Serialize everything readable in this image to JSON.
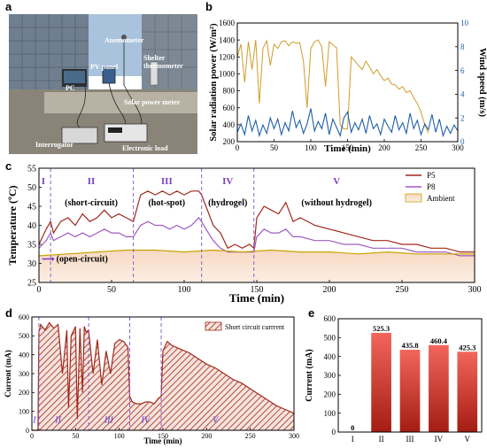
{
  "panel_labels": {
    "a": "a",
    "b": "b",
    "c": "c",
    "d": "d",
    "e": "e"
  },
  "photo": {
    "labels": {
      "anemometer": "Anemometer",
      "shelter": "Shelter\nthermometer",
      "pv": "PV panel",
      "pc": "PC",
      "meter": "Solar power meter",
      "interrogator": "Interrogator",
      "load": "Electronic load"
    },
    "colors": {
      "sky": "#a9c3dd",
      "building": "#6f7f8f",
      "ground": "#8a8478",
      "bench": "#b8b2a4"
    }
  },
  "chart_data": [
    {
      "id": "b",
      "type": "line",
      "xlabel": "Time (min)",
      "ylabel": "Solar radiation power (W/m²)",
      "ylabel2": "Wind speed (m/s)",
      "xlim": [
        0,
        300
      ],
      "ylim": [
        200,
        1600
      ],
      "ylim2": [
        0,
        10
      ],
      "xticks": [
        "0",
        "50",
        "100",
        "150",
        "200",
        "250",
        "300"
      ],
      "yticks": [
        "200",
        "400",
        "600",
        "800",
        "1000",
        "1200",
        "1400",
        "1600"
      ],
      "yticks2": [
        "0",
        "2",
        "4",
        "6",
        "8",
        "10"
      ],
      "series": [
        {
          "color": "#d29b2a",
          "axis": "left",
          "x": [
            0,
            5,
            10,
            15,
            20,
            25,
            30,
            35,
            40,
            45,
            50,
            55,
            60,
            65,
            70,
            75,
            80,
            85,
            90,
            95,
            100,
            105,
            110,
            115,
            120,
            125,
            130,
            135,
            140,
            145,
            150,
            155,
            160,
            165,
            170,
            175,
            180,
            185,
            190,
            195,
            200,
            205,
            210,
            215,
            220,
            225,
            230,
            235,
            240,
            245,
            250,
            255,
            260
          ],
          "y": [
            1200,
            1350,
            900,
            1380,
            1050,
            1400,
            650,
            1300,
            1390,
            1100,
            1350,
            1300,
            1380,
            1390,
            1330,
            1380,
            1360,
            1370,
            1150,
            600,
            1300,
            1380,
            1400,
            1320,
            850,
            1380,
            1340,
            1310,
            400,
            350,
            350,
            1200,
            1150,
            1100,
            1050,
            1150,
            1080,
            1000,
            1050,
            980,
            920,
            950,
            880,
            870,
            820,
            850,
            780,
            800,
            720,
            650,
            550,
            400,
            300
          ]
        },
        {
          "color": "#1f5fa8",
          "axis": "right",
          "x": [
            0,
            5,
            10,
            15,
            20,
            25,
            30,
            35,
            40,
            45,
            50,
            55,
            60,
            65,
            70,
            75,
            80,
            85,
            90,
            95,
            100,
            105,
            110,
            115,
            120,
            125,
            130,
            135,
            140,
            145,
            150,
            155,
            160,
            165,
            170,
            175,
            180,
            185,
            190,
            195,
            200,
            205,
            210,
            215,
            220,
            225,
            230,
            235,
            240,
            245,
            250,
            255,
            260,
            265,
            270,
            275,
            280,
            285,
            290,
            295,
            300
          ],
          "y": [
            0.8,
            1.5,
            0.6,
            2.2,
            0.9,
            1.8,
            0.5,
            1.4,
            0.7,
            2.0,
            1.1,
            1.9,
            0.6,
            1.6,
            0.9,
            2.6,
            1.2,
            1.8,
            0.7,
            1.5,
            2.8,
            0.9,
            1.7,
            1.1,
            2.4,
            0.6,
            1.9,
            1.2,
            0.5,
            2.0,
            2.5,
            0.8,
            1.6,
            1.0,
            1.9,
            0.7,
            2.2,
            1.1,
            1.5,
            0.6,
            1.9,
            1.3,
            0.8,
            2.2,
            1.0,
            1.6,
            0.7,
            2.4,
            1.1,
            1.8,
            0.6,
            1.5,
            1.0,
            2.3,
            0.8,
            1.9,
            0.5,
            1.3,
            0.7,
            1.4,
            0.9
          ]
        }
      ]
    },
    {
      "id": "c",
      "type": "line",
      "xlabel": "Time (min)",
      "ylabel": "Temperature (ºC)",
      "xlim": [
        0,
        300
      ],
      "ylim": [
        25,
        55
      ],
      "xticks": [
        "0",
        "50",
        "100",
        "150",
        "200",
        "250",
        "300"
      ],
      "yticks": [
        "25",
        "30",
        "35",
        "40",
        "45",
        "50",
        "55"
      ],
      "phase_dividers": [
        8,
        65,
        112,
        148
      ],
      "phases": [
        {
          "roman": "I",
          "desc": ""
        },
        {
          "roman": "II",
          "desc": "(short-circuit)"
        },
        {
          "roman": "III",
          "desc": "(hot-spot)"
        },
        {
          "roman": "IV",
          "desc": "(hydrogel)"
        },
        {
          "roman": "V",
          "desc": "(without hydrogel)"
        }
      ],
      "annotation": "(open-circuit)",
      "legend": [
        "P5",
        "P8",
        "Ambient"
      ],
      "series": [
        {
          "name": "P5",
          "color": "#a0291b",
          "x": [
            0,
            5,
            8,
            10,
            15,
            20,
            25,
            30,
            35,
            40,
            45,
            50,
            55,
            60,
            65,
            70,
            75,
            80,
            85,
            90,
            95,
            100,
            105,
            110,
            112,
            115,
            120,
            125,
            130,
            135,
            140,
            145,
            148,
            150,
            155,
            160,
            165,
            170,
            175,
            180,
            190,
            200,
            210,
            220,
            230,
            240,
            250,
            260,
            270,
            280,
            290,
            300
          ],
          "y": [
            35,
            39,
            41,
            38,
            41,
            42,
            40,
            43,
            41,
            42,
            44,
            42,
            43,
            42,
            41,
            48,
            49,
            48,
            49,
            48,
            49,
            48,
            49,
            49,
            48,
            45,
            40,
            38,
            34,
            35,
            34,
            35,
            34,
            42,
            45,
            44,
            43,
            46,
            41,
            42,
            40,
            39,
            38,
            37,
            36,
            36,
            35,
            35,
            34,
            34,
            33,
            33
          ]
        },
        {
          "name": "P8",
          "color": "#a05cc0",
          "x": [
            0,
            5,
            8,
            10,
            15,
            20,
            25,
            30,
            35,
            40,
            45,
            50,
            55,
            60,
            65,
            70,
            75,
            80,
            85,
            90,
            95,
            100,
            105,
            110,
            112,
            115,
            120,
            125,
            130,
            135,
            140,
            145,
            148,
            150,
            155,
            160,
            165,
            170,
            175,
            180,
            190,
            200,
            210,
            220,
            230,
            240,
            250,
            260,
            270,
            280,
            290,
            300
          ],
          "y": [
            34,
            36,
            38,
            36,
            37,
            38,
            37,
            38,
            37,
            38,
            39,
            38,
            38,
            37,
            37,
            40,
            41,
            40,
            40,
            39,
            40,
            39,
            40,
            42,
            41,
            39,
            36,
            34,
            33,
            33,
            33,
            33,
            33,
            37,
            39,
            38,
            38,
            39,
            37,
            37,
            36,
            36,
            35,
            35,
            34,
            34,
            34,
            33,
            33,
            33,
            32,
            32
          ]
        },
        {
          "name": "Ambient",
          "color": "#c9a300",
          "x": [
            0,
            20,
            40,
            60,
            80,
            100,
            120,
            140,
            160,
            180,
            200,
            220,
            240,
            260,
            280,
            300
          ],
          "y": [
            32,
            32.5,
            33,
            33.5,
            33.5,
            33,
            33.5,
            33,
            33.5,
            33,
            33,
            32.5,
            33,
            32.5,
            32.5,
            32.5
          ]
        }
      ]
    },
    {
      "id": "d",
      "type": "area",
      "xlabel": "Time (min)",
      "ylabel": "Current (mA)",
      "xlim": [
        0,
        300
      ],
      "ylim": [
        0,
        600
      ],
      "xticks": [
        "0",
        "50",
        "100",
        "150",
        "200",
        "250",
        "300"
      ],
      "yticks": [
        "0",
        "100",
        "200",
        "300",
        "400",
        "500",
        "600"
      ],
      "phase_dividers": [
        8,
        65,
        112,
        148
      ],
      "phase_labels": [
        "I",
        "II",
        "III",
        "IV",
        "V"
      ],
      "legend": [
        "Short circuit currrent"
      ],
      "series": [
        {
          "name": "Short circuit currrent",
          "color": "#a0291b",
          "x": [
            0,
            7,
            8,
            10,
            15,
            20,
            25,
            30,
            35,
            40,
            42,
            45,
            50,
            52,
            55,
            58,
            60,
            62,
            65,
            70,
            75,
            80,
            85,
            90,
            95,
            100,
            105,
            110,
            112,
            115,
            120,
            125,
            130,
            135,
            140,
            145,
            148,
            150,
            155,
            160,
            170,
            180,
            190,
            200,
            210,
            220,
            230,
            240,
            250,
            260,
            270,
            280,
            290,
            300
          ],
          "y": [
            0,
            0,
            520,
            560,
            530,
            570,
            540,
            560,
            300,
            530,
            120,
            500,
            550,
            60,
            540,
            200,
            550,
            520,
            530,
            300,
            480,
            240,
            420,
            300,
            460,
            480,
            470,
            440,
            180,
            150,
            140,
            140,
            150,
            150,
            140,
            170,
            180,
            420,
            470,
            450,
            430,
            410,
            380,
            350,
            330,
            300,
            270,
            250,
            220,
            190,
            160,
            130,
            110,
            90
          ]
        }
      ]
    },
    {
      "id": "e",
      "type": "bar",
      "ylabel": "Current (mA)",
      "ylim": [
        0,
        600
      ],
      "yticks": [
        "0",
        "100",
        "200",
        "300",
        "400",
        "500",
        "600"
      ],
      "categories": [
        "I",
        "II",
        "III",
        "IV",
        "V"
      ],
      "values": [
        0,
        525.3,
        435.8,
        460.4,
        425.3
      ],
      "labels": [
        "0",
        "525.3",
        "435.8",
        "460.4",
        "425.3"
      ]
    }
  ]
}
